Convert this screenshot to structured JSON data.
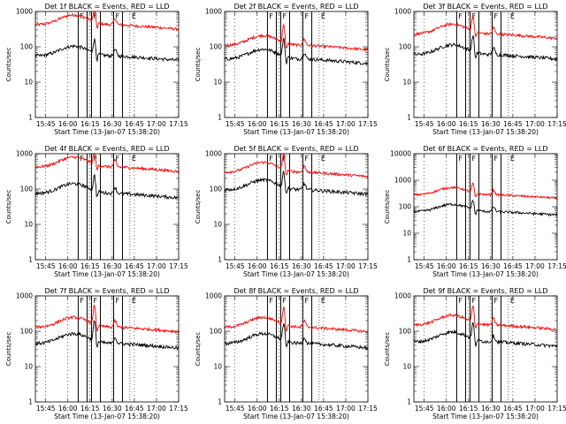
{
  "chart_data": {
    "type": "line",
    "layout": "3x3 grid of log-scale time series panels",
    "xaxis_title": "Start Time (13-Jan-07 15:38:20)",
    "yaxis_title": "Counts/sec",
    "xticks": [
      "15:45",
      "16:00",
      "16:15",
      "16:30",
      "16:45",
      "17:00",
      "17:15"
    ],
    "x_range": [
      "15:38",
      "17:15"
    ],
    "y_scale": "log",
    "colors": {
      "events": "#000000",
      "lld": "#ff0000",
      "markers": "#000000"
    },
    "series_names": [
      "Events",
      "LLD"
    ],
    "vertical_markers": [
      {
        "time": "16:07",
        "label": "F",
        "style": "solid"
      },
      {
        "time": "16:13",
        "label": "",
        "style": "solid"
      },
      {
        "time": "16:16",
        "label": "F",
        "style": "solid"
      },
      {
        "time": "16:22",
        "label": "",
        "style": "solid"
      },
      {
        "time": "16:31",
        "label": "F",
        "style": "solid"
      },
      {
        "time": "16:37",
        "label": "",
        "style": "solid"
      },
      {
        "time": "16:42",
        "label": "E",
        "style": "dotted"
      }
    ],
    "panels": [
      {
        "title": "Det 1f BLACK = Events, RED = LLD",
        "ylim": [
          1,
          1000
        ],
        "ytick_labels": [
          "1",
          "10",
          "100",
          "1000"
        ],
        "events_level": 55,
        "lld_level": 420,
        "peak": 2.4
      },
      {
        "title": "Det 2f BLACK = Events, RED = LLD",
        "ylim": [
          1,
          1000
        ],
        "ytick_labels": [
          "1",
          "10",
          "100",
          "1000"
        ],
        "events_level": 45,
        "lld_level": 110,
        "peak": 3.0
      },
      {
        "title": "Det 3f BLACK = Events, RED = LLD",
        "ylim": [
          1,
          1000
        ],
        "ytick_labels": [
          "1",
          "10",
          "100",
          "1000"
        ],
        "events_level": 60,
        "lld_level": 230,
        "peak": 2.8
      },
      {
        "title": "Det 4f BLACK = Events, RED = LLD",
        "ylim": [
          1,
          1000
        ],
        "ytick_labels": [
          "1",
          "10",
          "100",
          "1000"
        ],
        "events_level": 75,
        "lld_level": 420,
        "peak": 2.6
      },
      {
        "title": "Det 5f BLACK = Events, RED = LLD",
        "ylim": [
          1,
          1000
        ],
        "ytick_labels": [
          "1",
          "10",
          "100",
          "1000"
        ],
        "events_level": 95,
        "lld_level": 300,
        "peak": 2.6
      },
      {
        "title": "Det 6f BLACK = Events, RED = LLD",
        "ylim": [
          1,
          10000
        ],
        "ytick_labels": [
          "1",
          "10",
          "100",
          "1000",
          "10000"
        ],
        "events_level": 65,
        "lld_level": 280,
        "peak": 2.2
      },
      {
        "title": "Det 7f BLACK = Events, RED = LLD",
        "ylim": [
          1,
          1000
        ],
        "ytick_labels": [
          "1",
          "10",
          "100",
          "1000"
        ],
        "events_level": 45,
        "lld_level": 130,
        "peak": 3.5
      },
      {
        "title": "Det 8f BLACK = Events, RED = LLD",
        "ylim": [
          1,
          1000
        ],
        "ytick_labels": [
          "1",
          "10",
          "100",
          "1000"
        ],
        "events_level": 45,
        "lld_level": 130,
        "peak": 3.0
      },
      {
        "title": "Det 9f BLACK = Events, RED = LLD",
        "ylim": [
          1,
          1000
        ],
        "ytick_labels": [
          "1",
          "10",
          "100",
          "1000"
        ],
        "events_level": 50,
        "lld_level": 150,
        "peak": 2.8
      }
    ]
  }
}
